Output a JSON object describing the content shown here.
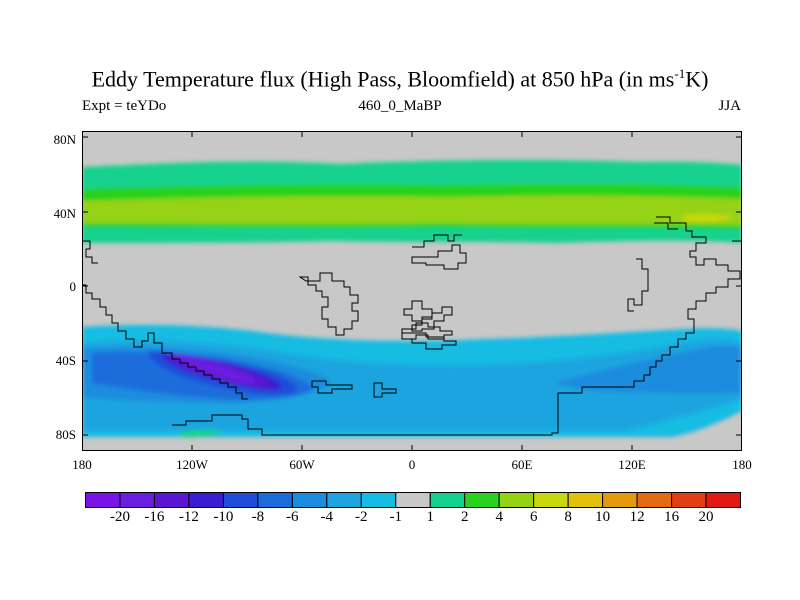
{
  "title": {
    "prefix": "Eddy Temperature flux (High Pass, Bloomfield) at 850 hPa (in ms",
    "superscript": "-1",
    "suffix": "K)"
  },
  "experiment_label": "Expt = teYDo",
  "run_label": "460_0_MaBP",
  "season_label": "JJA",
  "y_ticks": [
    "80N",
    "40N",
    "0",
    "40S",
    "80S"
  ],
  "x_ticks": [
    "180",
    "120W",
    "60W",
    "0",
    "60E",
    "120E",
    "180"
  ],
  "colorbar": {
    "colors": [
      "#7a14e6",
      "#6a1ee0",
      "#5a16d0",
      "#3a1ed2",
      "#1e4ed8",
      "#1a6cdc",
      "#1c8cde",
      "#1ea4e0",
      "#16bce2",
      "#c8c8c8",
      "#14d28e",
      "#28d21e",
      "#96d214",
      "#c8d80e",
      "#e2c00c",
      "#e29a0e",
      "#e26a12",
      "#e23e16",
      "#e21a14"
    ],
    "labels": [
      "-20",
      "-16",
      "-12",
      "-10",
      "-8",
      "-6",
      "-4",
      "-2",
      "-1",
      "1",
      "2",
      "4",
      "6",
      "8",
      "10",
      "12",
      "16",
      "20"
    ]
  }
}
